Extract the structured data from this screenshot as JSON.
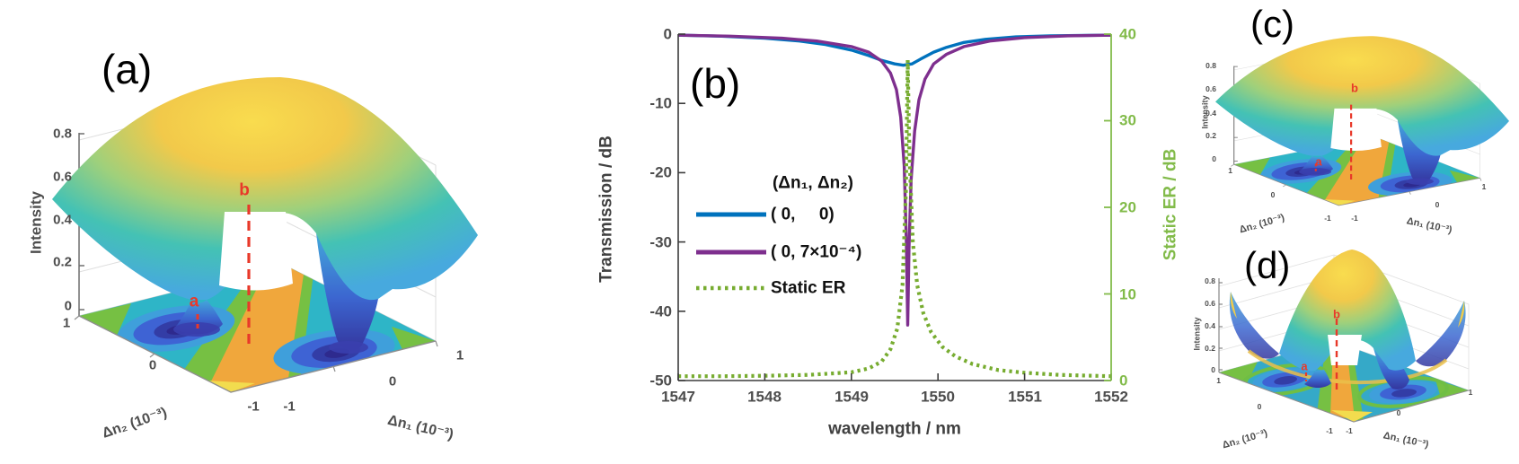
{
  "colors": {
    "matlab_blue": "#0072BD",
    "matlab_purple": "#7E2F8E",
    "matlab_green": "#77AC30",
    "green_axis": "#82BB4A",
    "red_marker": "#E8392A",
    "tick_gray": "#4d4d4d"
  },
  "panel_a": {
    "tag": "(a)",
    "zlabel": "Intensity",
    "z_ticks": [
      "0.8",
      "0.6",
      "0.4",
      "0.2",
      "0"
    ],
    "xlabel": "Δn₁ (10⁻³)",
    "ylabel": "Δn₂ (10⁻³)",
    "x_ticks": [
      "-1",
      "0",
      "1"
    ],
    "y_ticks": [
      "1",
      "0",
      "-1"
    ],
    "marker_a": "a",
    "marker_b": "b"
  },
  "panel_b": {
    "tag": "(b)",
    "xlabel": "wavelength / nm",
    "ylabel_left": "Transmission / dB",
    "ylabel_right": "Static ER / dB",
    "x_ticks": [
      "1547",
      "1548",
      "1549",
      "1550",
      "1551",
      "1552"
    ],
    "y_ticks_left": [
      "0",
      "-10",
      "-20",
      "-30",
      "-40",
      "-50"
    ],
    "y_ticks_right": [
      "40",
      "30",
      "20",
      "10",
      "0"
    ],
    "legend": {
      "header": "(Δn₁, Δn₂)",
      "entries": [
        {
          "label": "( 0,     0)",
          "style": "solid"
        },
        {
          "label": "( 0, 7×10⁻⁴)",
          "style": "solid"
        },
        {
          "label": "Static ER",
          "style": "dotted"
        }
      ]
    }
  },
  "panel_c": {
    "tag": "(c)",
    "zlabel": "Intensity",
    "z_ticks": [
      "0.8",
      "0.6",
      "0.4",
      "0.2",
      "0"
    ],
    "xlabel": "Δn₁ (10⁻³)",
    "ylabel": "Δn₂ (10⁻³)",
    "x_ticks": [
      "-1",
      "0",
      "1"
    ],
    "y_ticks": [
      "1",
      "0",
      "-1"
    ],
    "marker_a": "a",
    "marker_b": "b"
  },
  "panel_d": {
    "tag": "(d)",
    "zlabel": "Intensity",
    "z_ticks": [
      "0.8",
      "0.6",
      "0.4",
      "0.2",
      "0"
    ],
    "xlabel": "Δn₁ (10⁻³)",
    "ylabel": "Δn₂ (10⁻³)",
    "x_ticks": [
      "-1",
      "0",
      "1"
    ],
    "y_ticks": [
      "1",
      "0",
      "-1"
    ],
    "marker_a": "a",
    "marker_b": "b"
  },
  "chart_data": [
    {
      "type": "line",
      "panel": "b",
      "xlabel": "wavelength / nm",
      "ylabel_left": "Transmission / dB",
      "ylabel_right": "Static ER / dB",
      "xlim": [
        1547,
        1552
      ],
      "ylim_left": [
        -50,
        0
      ],
      "ylim_right": [
        0,
        40
      ],
      "grid": false,
      "legend_position": "center-left",
      "series": [
        {
          "name": "(Δn₁, Δn₂) = ( 0, 0 )",
          "axis": "left",
          "color": "#0072BD",
          "style": "solid",
          "x": [
            1547,
            1547.5,
            1548,
            1548.4,
            1548.7,
            1549,
            1549.2,
            1549.35,
            1549.5,
            1549.6,
            1549.7,
            1549.8,
            1549.95,
            1550.1,
            1550.3,
            1550.55,
            1550.9,
            1551.3,
            1551.7,
            1552
          ],
          "y": [
            -0.15,
            -0.3,
            -0.6,
            -1.0,
            -1.5,
            -2.3,
            -3.1,
            -3.8,
            -4.3,
            -4.5,
            -4.3,
            -3.6,
            -2.6,
            -1.9,
            -1.2,
            -0.75,
            -0.4,
            -0.25,
            -0.18,
            -0.15
          ]
        },
        {
          "name": "(Δn₁, Δn₂) = ( 0, 7×10⁻⁴ )",
          "axis": "left",
          "color": "#7E2F8E",
          "style": "solid",
          "x": [
            1547,
            1547.6,
            1548.2,
            1548.6,
            1549,
            1549.2,
            1549.35,
            1549.45,
            1549.52,
            1549.57,
            1549.61,
            1549.635,
            1549.65,
            1549.665,
            1549.69,
            1549.73,
            1549.78,
            1549.85,
            1549.95,
            1550.1,
            1550.3,
            1550.6,
            1551,
            1551.5,
            1552
          ],
          "y": [
            -0.15,
            -0.3,
            -0.6,
            -1.0,
            -1.8,
            -2.6,
            -3.9,
            -5.6,
            -8,
            -12,
            -19,
            -30,
            -42,
            -31,
            -21,
            -14,
            -9.5,
            -6.5,
            -4.3,
            -2.9,
            -1.8,
            -1.0,
            -0.5,
            -0.25,
            -0.15
          ]
        },
        {
          "name": "Static ER",
          "axis": "right",
          "color": "#77AC30",
          "style": "dotted",
          "x": [
            1547,
            1547.5,
            1548,
            1548.5,
            1549,
            1549.2,
            1549.35,
            1549.45,
            1549.53,
            1549.59,
            1549.63,
            1549.65,
            1549.67,
            1549.71,
            1549.76,
            1549.83,
            1549.92,
            1550.05,
            1550.2,
            1550.4,
            1550.7,
            1551,
            1551.4,
            1552
          ],
          "y": [
            0.5,
            0.5,
            0.55,
            0.65,
            0.95,
            1.4,
            2.2,
            3.6,
            6,
            11,
            22,
            37,
            26,
            16,
            11,
            7.8,
            5.6,
            3.9,
            2.8,
            1.9,
            1.2,
            0.9,
            0.65,
            0.5
          ]
        }
      ]
    },
    {
      "type": "surface",
      "panel": "a",
      "zlabel": "Intensity",
      "zlim": [
        0,
        0.8
      ],
      "z_ticks": [
        0,
        0.2,
        0.4,
        0.6,
        0.8
      ],
      "xlabel": "Δn₁ (10⁻³)",
      "xlim": [
        -1,
        1
      ],
      "ylabel": "Δn₂ (10⁻³)",
      "ylim": [
        -1,
        1
      ],
      "peak_value": 0.85,
      "peak_at": [
        0,
        0
      ],
      "minima_value": 0,
      "description": "Dome-shaped intensity surface with central maximum near (0,0) marked by red dashed guide line and label b; two deep funnel minima reaching the floor marked a; filled contour projection on the floor (orange saddle band between two blue/navy minima basins on a cyan background).",
      "annotations": [
        "a",
        "b"
      ]
    },
    {
      "type": "surface",
      "panel": "c",
      "zlabel": "Intensity",
      "zlim": [
        0,
        0.8
      ],
      "z_ticks": [
        0,
        0.2,
        0.4,
        0.6,
        0.8
      ],
      "xlabel": "Δn₁ (10⁻³)",
      "xlim": [
        -1,
        1
      ],
      "ylabel": "Δn₂ (10⁻³)",
      "ylim": [
        -1,
        1
      ],
      "peak_value": 0.85,
      "peak_at": [
        0,
        0
      ],
      "description": "Smaller replica of panel (a): central dome with two funnel minima, red dashed guide line with labels a and b, contour floor.",
      "annotations": [
        "a",
        "b"
      ]
    },
    {
      "type": "surface",
      "panel": "d",
      "zlabel": "Intensity",
      "zlim": [
        0,
        0.8
      ],
      "z_ticks": [
        0,
        0.2,
        0.4,
        0.6,
        0.8
      ],
      "xlabel": "Δn₁ (10⁻³)",
      "xlim": [
        -1,
        1
      ],
      "ylabel": "Δn₂ (10⁻³)",
      "ylim": [
        -1,
        1
      ],
      "peak_value": 0.8,
      "peak_at": [
        0,
        0
      ],
      "description": "Variant surface: narrower central dome with red dashed guide line (labels a, b), bowl skirt and four upturned corner wings; shallower minima; wavier contour floor with green bands and smaller navy basins.",
      "annotations": [
        "a",
        "b"
      ]
    }
  ]
}
